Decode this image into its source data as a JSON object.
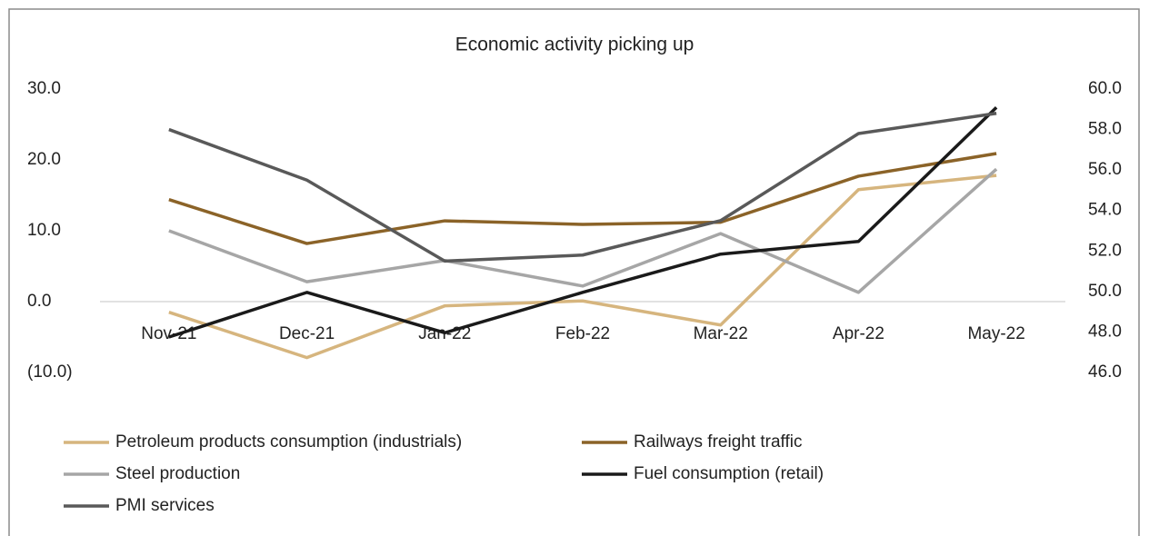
{
  "chart_data": {
    "type": "line",
    "title": "Economic activity picking up",
    "categories": [
      "Nov-21",
      "Dec-21",
      "Jan-22",
      "Feb-22",
      "Mar-22",
      "Apr-22",
      "May-22"
    ],
    "series": [
      {
        "name": "Petroleum products consumption (industrials)",
        "color": "#d6b57e",
        "values": [
          -1.5,
          -7.9,
          -0.6,
          0.1,
          -3.3,
          15.8,
          17.8
        ]
      },
      {
        "name": "Railways freight traffic",
        "color": "#8b6328",
        "values": [
          14.4,
          8.2,
          11.4,
          10.9,
          11.2,
          17.7,
          20.9
        ]
      },
      {
        "name": "Steel production",
        "color": "#a6a6a6",
        "values": [
          10.0,
          2.8,
          5.8,
          2.2,
          9.6,
          1.3,
          18.7
        ]
      },
      {
        "name": "Fuel consumption (retail)",
        "color": "#1a1a1a",
        "values": [
          -5.0,
          1.3,
          -4.4,
          1.3,
          6.7,
          8.5,
          27.4
        ]
      },
      {
        "name": "PMI services",
        "color": "#595959",
        "axis": "y2",
        "values": [
          58.0,
          55.5,
          51.5,
          51.8,
          53.5,
          57.8,
          58.8
        ]
      }
    ],
    "ylim": [
      -10,
      30
    ],
    "yticks": [
      {
        "value": 30,
        "label": "30.0"
      },
      {
        "value": 20,
        "label": "20.0"
      },
      {
        "value": 10,
        "label": "10.0"
      },
      {
        "value": 0,
        "label": "0.0"
      },
      {
        "value": -10,
        "label": "(10.0)"
      }
    ],
    "y2lim": [
      46,
      60
    ],
    "y2ticks": [
      {
        "value": 60,
        "label": "60.0"
      },
      {
        "value": 58,
        "label": "58.0"
      },
      {
        "value": 56,
        "label": "56.0"
      },
      {
        "value": 54,
        "label": "54.0"
      },
      {
        "value": 52,
        "label": "52.0"
      },
      {
        "value": 50,
        "label": "50.0"
      },
      {
        "value": 48,
        "label": "48.0"
      },
      {
        "value": 46,
        "label": "46.0"
      }
    ],
    "grid": false,
    "legend": "bottom"
  }
}
